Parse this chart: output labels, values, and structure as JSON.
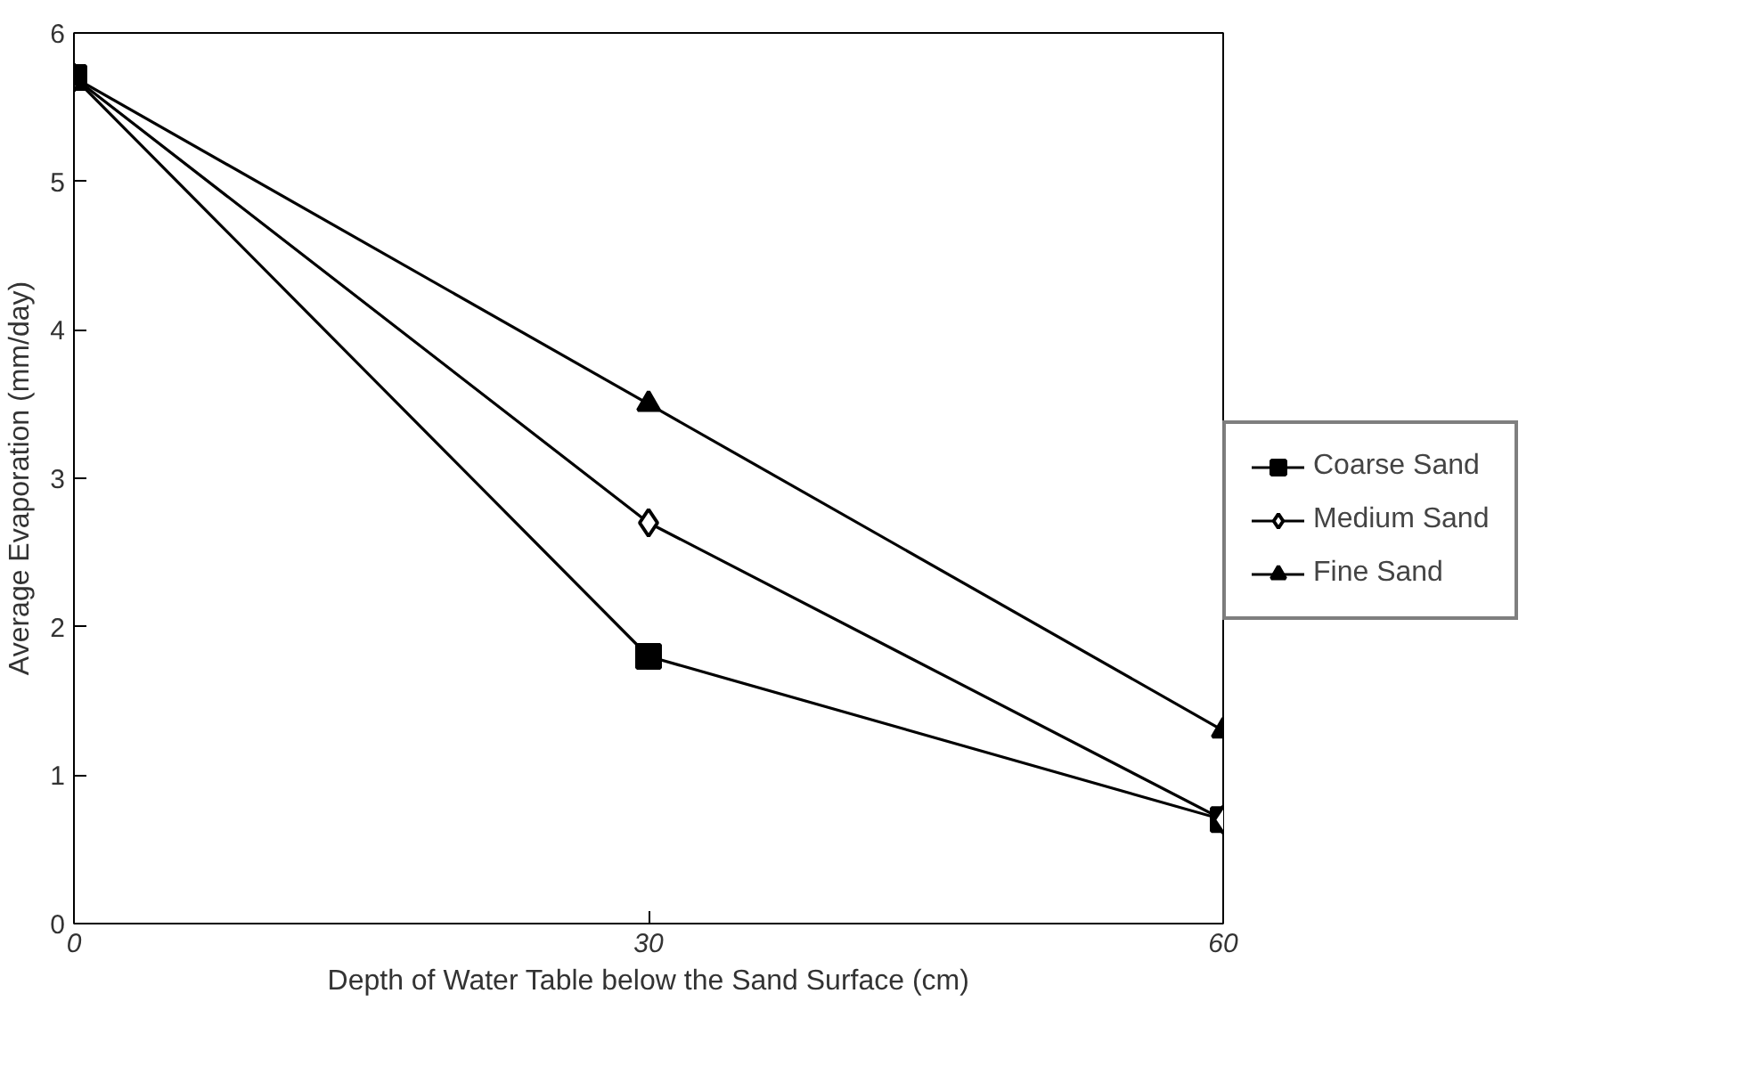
{
  "chart_data": {
    "type": "line",
    "xlabel": "Depth of Water Table below the Sand Surface (cm)",
    "ylabel": "Average Evaporation (mm/day)",
    "x": [
      0,
      30,
      60
    ],
    "xlim": [
      0,
      60
    ],
    "xticks": [
      0,
      30,
      60
    ],
    "ylim": [
      0,
      6
    ],
    "yticks": [
      0,
      1,
      2,
      3,
      4,
      5,
      6
    ],
    "grid": false,
    "legend": "right",
    "series": [
      {
        "name": "Coarse Sand",
        "color": "#000000",
        "marker": "square",
        "values": [
          5.7,
          1.8,
          0.7
        ]
      },
      {
        "name": "Medium Sand",
        "color": "#000000",
        "marker": "diamond",
        "values": [
          5.7,
          2.7,
          0.7
        ]
      },
      {
        "name": "Fine Sand",
        "color": "#000000",
        "marker": "triangle",
        "values": [
          5.7,
          3.5,
          1.3
        ]
      }
    ]
  }
}
